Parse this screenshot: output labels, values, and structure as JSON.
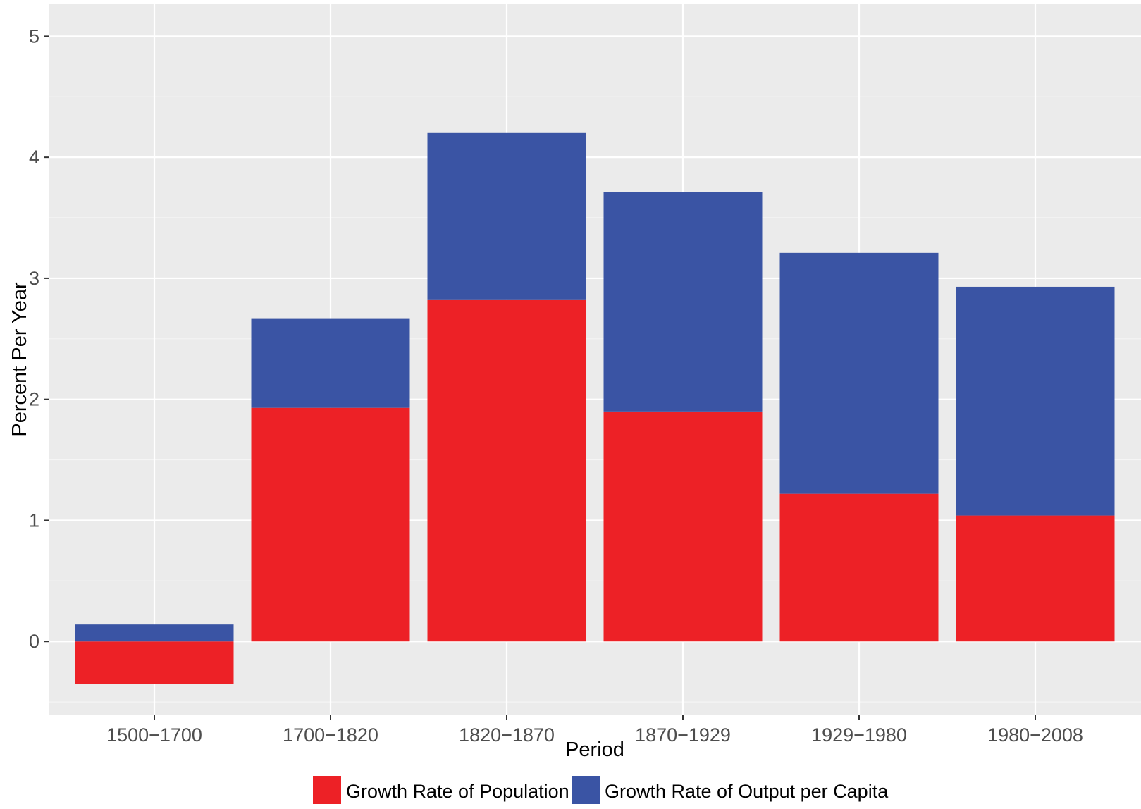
{
  "colors": {
    "panel_background": "#ebebeb",
    "grid_major": "#ffffff",
    "grid_minor": "#f5f5f5",
    "population": "#ed2126",
    "output_per_capita": "#3a54a4"
  },
  "chart_data": {
    "type": "bar",
    "stacked": true,
    "categories": [
      "1500−1700",
      "1700−1820",
      "1820−1870",
      "1870−1929",
      "1929−1980",
      "1980−2008"
    ],
    "series": [
      {
        "name": "Growth Rate of Population",
        "color": "#ed2126",
        "values": [
          -0.35,
          1.93,
          2.82,
          1.9,
          1.22,
          1.04
        ]
      },
      {
        "name": "Growth Rate of Output per Capita",
        "color": "#3a54a4",
        "values": [
          0.14,
          0.74,
          1.38,
          1.81,
          1.99,
          1.89
        ]
      }
    ],
    "xlabel": "Period",
    "ylabel": "Percent Per Year",
    "ylim": [
      -0.61,
      5.27
    ],
    "yticks": [
      0,
      1,
      2,
      3,
      4,
      5
    ],
    "grid": true,
    "legend_position": "bottom"
  }
}
